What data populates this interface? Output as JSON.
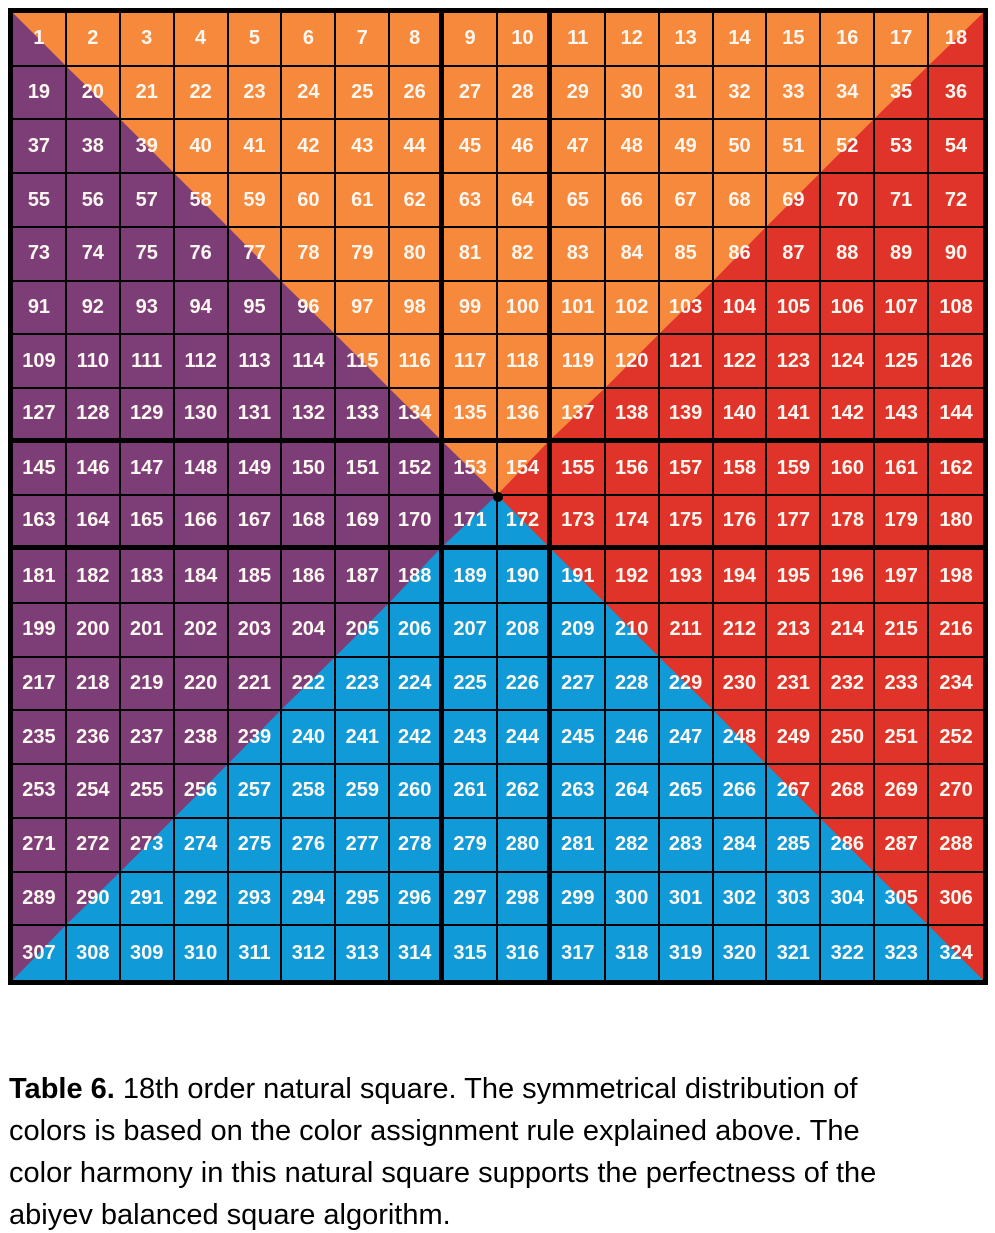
{
  "table": {
    "order": 18,
    "rows": [
      [
        1,
        2,
        3,
        4,
        5,
        6,
        7,
        8,
        9,
        10,
        11,
        12,
        13,
        14,
        15,
        16,
        17,
        18
      ],
      [
        19,
        20,
        21,
        22,
        23,
        24,
        25,
        26,
        27,
        28,
        29,
        30,
        31,
        32,
        33,
        34,
        35,
        36
      ],
      [
        37,
        38,
        39,
        40,
        41,
        42,
        43,
        44,
        45,
        46,
        47,
        48,
        49,
        50,
        51,
        52,
        53,
        54
      ],
      [
        55,
        56,
        57,
        58,
        59,
        60,
        61,
        62,
        63,
        64,
        65,
        66,
        67,
        68,
        69,
        70,
        71,
        72
      ],
      [
        73,
        74,
        75,
        76,
        77,
        78,
        79,
        80,
        81,
        82,
        83,
        84,
        85,
        86,
        87,
        88,
        89,
        90
      ],
      [
        91,
        92,
        93,
        94,
        95,
        96,
        97,
        98,
        99,
        100,
        101,
        102,
        103,
        104,
        105,
        106,
        107,
        108
      ],
      [
        109,
        110,
        111,
        112,
        113,
        114,
        115,
        116,
        117,
        118,
        119,
        120,
        121,
        122,
        123,
        124,
        125,
        126
      ],
      [
        127,
        128,
        129,
        130,
        131,
        132,
        133,
        134,
        135,
        136,
        137,
        138,
        139,
        140,
        141,
        142,
        143,
        144
      ],
      [
        145,
        146,
        147,
        148,
        149,
        150,
        151,
        152,
        153,
        154,
        155,
        156,
        157,
        158,
        159,
        160,
        161,
        162
      ],
      [
        163,
        164,
        165,
        166,
        167,
        168,
        169,
        170,
        171,
        172,
        173,
        174,
        175,
        176,
        177,
        178,
        179,
        180
      ],
      [
        181,
        182,
        183,
        184,
        185,
        186,
        187,
        188,
        189,
        190,
        191,
        192,
        193,
        194,
        195,
        196,
        197,
        198
      ],
      [
        199,
        200,
        201,
        202,
        203,
        204,
        205,
        206,
        207,
        208,
        209,
        210,
        211,
        212,
        213,
        214,
        215,
        216
      ],
      [
        217,
        218,
        219,
        220,
        221,
        222,
        223,
        224,
        225,
        226,
        227,
        228,
        229,
        230,
        231,
        232,
        233,
        234
      ],
      [
        235,
        236,
        237,
        238,
        239,
        240,
        241,
        242,
        243,
        244,
        245,
        246,
        247,
        248,
        249,
        250,
        251,
        252
      ],
      [
        253,
        254,
        255,
        256,
        257,
        258,
        259,
        260,
        261,
        262,
        263,
        264,
        265,
        266,
        267,
        268,
        269,
        270
      ],
      [
        271,
        272,
        273,
        274,
        275,
        276,
        277,
        278,
        279,
        280,
        281,
        282,
        283,
        284,
        285,
        286,
        287,
        288
      ],
      [
        289,
        290,
        291,
        292,
        293,
        294,
        295,
        296,
        297,
        298,
        299,
        300,
        301,
        302,
        303,
        304,
        305,
        306
      ],
      [
        307,
        308,
        309,
        310,
        311,
        312,
        313,
        314,
        315,
        316,
        317,
        318,
        319,
        320,
        321,
        322,
        323,
        324
      ]
    ],
    "color_map": [
      "aOOOOOOOOOOOOOOOOc",
      "PaOOOOOOOOOOOOOOcR",
      "PPaOOOOOOOOOOOOcRR",
      "PPPaOOOOOOOOOOcRRR",
      "PPPPaOOOOOOOOcRRRR",
      "PPPPPaOOOOOOcRRRRR",
      "PPPPPPaOOOOcRRRRRR",
      "PPPPPPPaOOcRRRRRRR",
      "PPPPPPPPacRRRRRRRR",
      "PPPPPPPPdbRRRRRRRR",
      "PPPPPPPdBBbRRRRRRR",
      "PPPPPPdBBBBbRRRRRR",
      "PPPPPdBBBBBBbRRRRR",
      "PPPPdBBBBBBBBbRRRR",
      "PPPdBBBBBBBBBBbRRR",
      "PPdBBBBBBBBBBBBbRR",
      "PdBBBBBBBBBBBBBBbR",
      "dBBBBBBBBBBBBBBBBb"
    ],
    "color_map_legend": {
      "O": "solid orange (top triangle)",
      "R": "solid red (right triangle)",
      "B": "solid blue (bottom triangle)",
      "P": "solid purple (left triangle)",
      "a": "main-diagonal split: upper-right orange / lower-left purple",
      "b": "main-diagonal split: upper-right red / lower-left blue",
      "c": "anti-diagonal split: upper-left orange / lower-right red",
      "d": "anti-diagonal split: upper-left purple / lower-right blue"
    },
    "colors": {
      "orange": "#F6893C",
      "red": "#E0342B",
      "blue": "#109BD8",
      "purple": "#7D3E78",
      "grid_line": "#000000",
      "number_text": "#FDF7F0"
    },
    "thick_line_after_columns": [
      8,
      10
    ],
    "thick_line_after_rows": [
      8,
      10
    ],
    "center_dot": true
  },
  "caption": {
    "label": "Table 6.",
    "lines": [
      " 18th order natural square. The symmetrical distribution of",
      "colors is based on the color assignment rule explained above. The",
      "color harmony in this natural square supports the perfectness of the",
      "abiyev balanced square algorithm."
    ]
  }
}
